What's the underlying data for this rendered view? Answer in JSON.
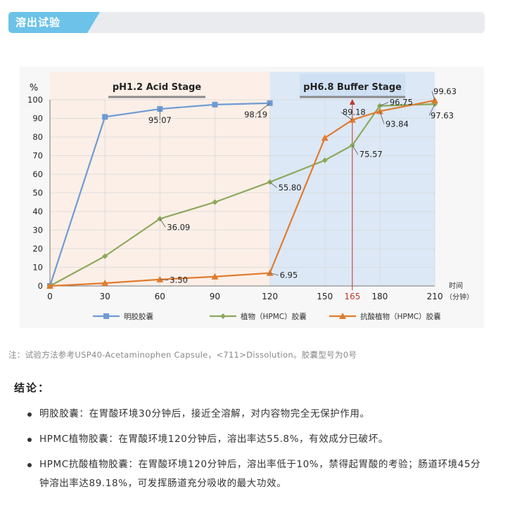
{
  "section": {
    "title": "溶出试验"
  },
  "chart_data": {
    "type": "line",
    "ylabel": "%",
    "xlabel_line1": "时间",
    "xlabel_line2": "（分钟）",
    "x": [
      0,
      30,
      60,
      90,
      120,
      150,
      165,
      180,
      210
    ],
    "xticks": [
      "0",
      "30",
      "60",
      "90",
      "120",
      "150",
      "165",
      "180",
      "210"
    ],
    "yticks": [
      "0",
      "10",
      "20",
      "30",
      "40",
      "50",
      "60",
      "70",
      "80",
      "90",
      "100"
    ],
    "xlim": [
      0,
      210
    ],
    "ylim": [
      0,
      100
    ],
    "stages": [
      {
        "label": "pH1.2 Acid Stage",
        "x_range": [
          0,
          120
        ],
        "color": "#fbefe7"
      },
      {
        "label": "pH6.8 Buffer Stage",
        "x_range": [
          120,
          210
        ],
        "color": "#dce8f6"
      }
    ],
    "marker_line": {
      "x": 165,
      "label": "165",
      "color": "#c0392b"
    },
    "series": [
      {
        "name": "明胶胶囊",
        "color": "#6f9bd3",
        "marker": "square",
        "x": [
          0,
          30,
          60,
          90,
          120
        ],
        "y": [
          0,
          90.8,
          95.07,
          97.4,
          98.19
        ]
      },
      {
        "name": "植物（HPMC）胶囊",
        "color": "#8da85c",
        "marker": "diamond",
        "x": [
          0,
          30,
          60,
          90,
          120,
          150,
          165,
          180,
          210
        ],
        "y": [
          0,
          16,
          36.09,
          45,
          55.8,
          67.5,
          75.57,
          96.75,
          97.63
        ]
      },
      {
        "name": "抗酸植物（HPMC）胶囊",
        "color": "#e07b2e",
        "marker": "triangle",
        "x": [
          0,
          30,
          60,
          90,
          120,
          150,
          165,
          180,
          210
        ],
        "y": [
          0,
          1.5,
          3.5,
          5,
          6.95,
          79.5,
          89.18,
          93.84,
          99.63
        ]
      }
    ],
    "annotations": [
      {
        "text": "95.07",
        "x": 60,
        "y": 95.07
      },
      {
        "text": "98.19",
        "x": 120,
        "y": 98.19
      },
      {
        "text": "36.09",
        "x": 60,
        "y": 36.09
      },
      {
        "text": "55.80",
        "x": 120,
        "y": 55.8
      },
      {
        "text": "3.50",
        "x": 60,
        "y": 3.5
      },
      {
        "text": "6.95",
        "x": 120,
        "y": 6.95
      },
      {
        "text": "89.18",
        "x": 165,
        "y": 89.18
      },
      {
        "text": "75.57",
        "x": 165,
        "y": 75.57
      },
      {
        "text": "96.75",
        "x": 180,
        "y": 96.75
      },
      {
        "text": "93.84",
        "x": 180,
        "y": 93.84
      },
      {
        "text": "99.63",
        "x": 210,
        "y": 99.63
      },
      {
        "text": "97.63",
        "x": 210,
        "y": 97.63
      }
    ]
  },
  "note": "注：试验方法参考USP40-Acetaminophen Capsule，<711>Dissolution。胶囊型号为0号",
  "conclusion": {
    "title": "结论：",
    "items": [
      "明胶胶囊：在胃酸环境30分钟后，接近全溶解，对内容物完全无保护作用。",
      "HPMC植物胶囊：在胃酸环境120分钟后，溶出率达55.8%，有效成分已破坏。",
      "HPMC抗酸植物胶囊：在胃酸环境120分钟后，溶出率低于10%，禁得起胃酸的考验；肠道环境45分钟溶出率达89.18%，可发挥肠道充分吸收的最大功效。"
    ]
  }
}
